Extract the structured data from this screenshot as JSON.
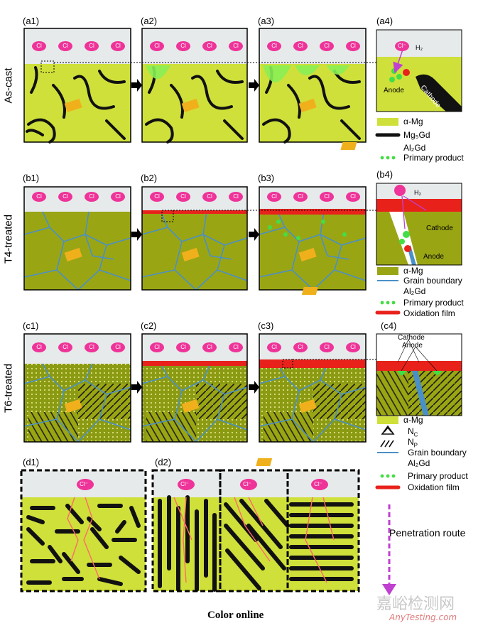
{
  "row_labels": {
    "a": "As-cast",
    "b": "T4-treated",
    "c": "T6-treated"
  },
  "panel_labels": [
    "(a1)",
    "(a2)",
    "(a3)",
    "(a4)",
    "(b1)",
    "(b2)",
    "(b3)",
    "(b4)",
    "(c1)",
    "(c2)",
    "(c3)",
    "(c4)",
    "(d1)",
    "(d2)"
  ],
  "ion": "Cl",
  "ion_big": "Cl⁻",
  "h2": "H₂",
  "oh": "OH⁻",
  "a4_labels": {
    "anode": "Anode",
    "cathode": "Cathode"
  },
  "b4_labels": {
    "cathode": "Cathode",
    "anode": "Anode"
  },
  "c4_labels": {
    "cathode": "Cathode",
    "anode": "Anode"
  },
  "legend_a": [
    "α-Mg",
    "Mg₅Gd",
    "Al₂Gd",
    "Primary product"
  ],
  "legend_b": [
    "α-Mg",
    "Grain boundary",
    "Al₂Gd",
    "Primary product",
    "Oxidation film"
  ],
  "legend_c": [
    "α-Mg",
    "N",
    "N",
    "Grain boundary",
    "Al₂Gd",
    "Primary product",
    "Oxidation film"
  ],
  "legend_c_subs": [
    "C",
    "P"
  ],
  "penetration": "Penetration route",
  "caption": "Color online",
  "watermark": {
    "cn": "嘉峪检测网",
    "en": "AnyTesting.com"
  },
  "colors": {
    "mg_light": "#cfe03a",
    "mg_dark": "#9aa514",
    "solution": "#e4e8e8",
    "ion": "#ee3399",
    "product": "#44dd44",
    "film": "#e8221b",
    "gb": "#4a90c8",
    "al2gd": "#f0b01c"
  }
}
